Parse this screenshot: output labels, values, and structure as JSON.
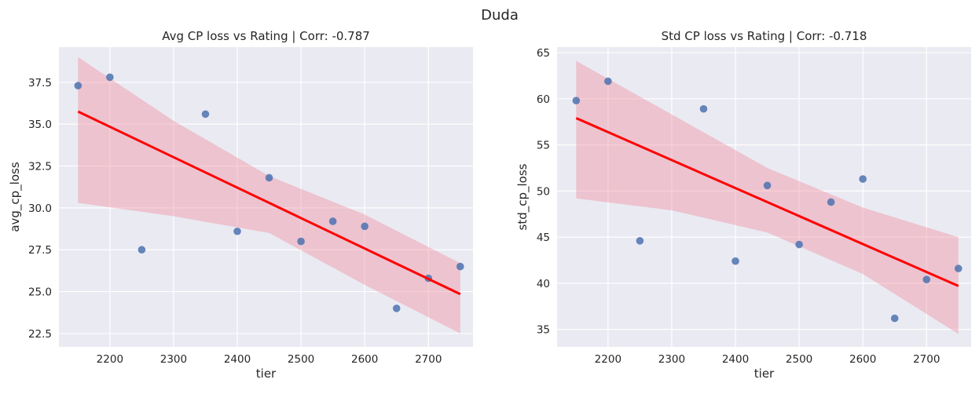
{
  "suptitle": "Duda",
  "chart_data": [
    {
      "type": "scatter",
      "title": "Avg CP loss vs Rating | Corr: -0.787",
      "xlabel": "tier",
      "ylabel": "avg_cp_loss",
      "xlim": [
        2120,
        2770
      ],
      "ylim": [
        21.7,
        39.6
      ],
      "xticks": [
        2200,
        2300,
        2400,
        2500,
        2600,
        2700
      ],
      "yticks": [
        22.5,
        25.0,
        27.5,
        30.0,
        32.5,
        35.0,
        37.5
      ],
      "ytick_labels": [
        "22.5",
        "25.0",
        "27.5",
        "30.0",
        "32.5",
        "35.0",
        "37.5"
      ],
      "x": [
        2150,
        2200,
        2250,
        2350,
        2400,
        2450,
        2500,
        2550,
        2600,
        2650,
        2700,
        2750
      ],
      "y": [
        37.3,
        37.8,
        27.5,
        35.6,
        28.6,
        31.8,
        28.0,
        29.2,
        28.9,
        24.0,
        25.8,
        26.5
      ],
      "regression": {
        "x": [
          2150,
          2750
        ],
        "y": [
          35.75,
          24.85
        ]
      },
      "ci_band": {
        "x": [
          2150,
          2300,
          2450,
          2600,
          2750
        ],
        "upper": [
          39.0,
          35.2,
          31.9,
          29.6,
          26.7
        ],
        "lower": [
          30.3,
          29.5,
          28.5,
          25.4,
          22.5
        ]
      },
      "colors": {
        "points": "#4c72b0",
        "line": "#ff0000",
        "band": "#f08a9c"
      }
    },
    {
      "type": "scatter",
      "title": "Std CP loss vs Rating | Corr: -0.718",
      "xlabel": "tier",
      "ylabel": "std_cp_loss",
      "xlim": [
        2120,
        2770
      ],
      "ylim": [
        33.1,
        65.6
      ],
      "xticks": [
        2200,
        2300,
        2400,
        2500,
        2600,
        2700
      ],
      "yticks": [
        35,
        40,
        45,
        50,
        55,
        60,
        65
      ],
      "ytick_labels": [
        "35",
        "40",
        "45",
        "50",
        "55",
        "60",
        "65"
      ],
      "x": [
        2150,
        2200,
        2250,
        2350,
        2400,
        2450,
        2500,
        2550,
        2600,
        2650,
        2700,
        2750
      ],
      "y": [
        59.8,
        61.9,
        44.6,
        58.9,
        42.4,
        50.6,
        44.2,
        48.8,
        51.3,
        36.2,
        40.4,
        41.6
      ],
      "regression": {
        "x": [
          2150,
          2750
        ],
        "y": [
          57.9,
          39.7
        ]
      },
      "ci_band": {
        "x": [
          2150,
          2300,
          2450,
          2600,
          2750
        ],
        "upper": [
          64.1,
          58.3,
          52.5,
          48.2,
          45.0
        ],
        "lower": [
          49.2,
          47.9,
          45.5,
          41.0,
          34.5
        ]
      },
      "colors": {
        "points": "#4c72b0",
        "line": "#ff0000",
        "band": "#f08a9c"
      }
    }
  ]
}
